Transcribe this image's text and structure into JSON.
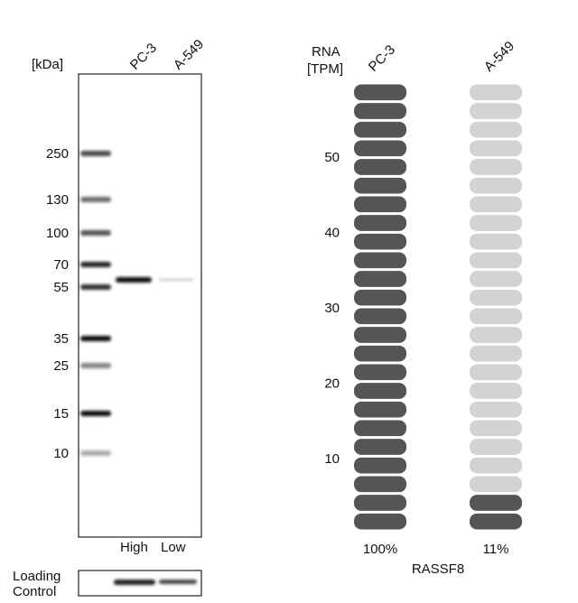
{
  "western_blot": {
    "unit_label": "[kDa]",
    "lanes": [
      "PC-3",
      "A-549"
    ],
    "markers": [
      250,
      130,
      100,
      70,
      55,
      35,
      25,
      15,
      10
    ],
    "lane_levels": [
      "High",
      "Low"
    ],
    "loading_control": [
      "Loading",
      "Control"
    ]
  },
  "rna": {
    "header": [
      "RNA",
      "[TPM]"
    ],
    "samples": [
      {
        "name": "PC-3",
        "percent": {
          "value": 100,
          "label": "100%"
        }
      },
      {
        "name": "A-549",
        "percent": {
          "value": 11,
          "label": "11%"
        }
      }
    ],
    "yticks": [
      10,
      20,
      30,
      40,
      50
    ],
    "gene": "RASSF8"
  }
}
